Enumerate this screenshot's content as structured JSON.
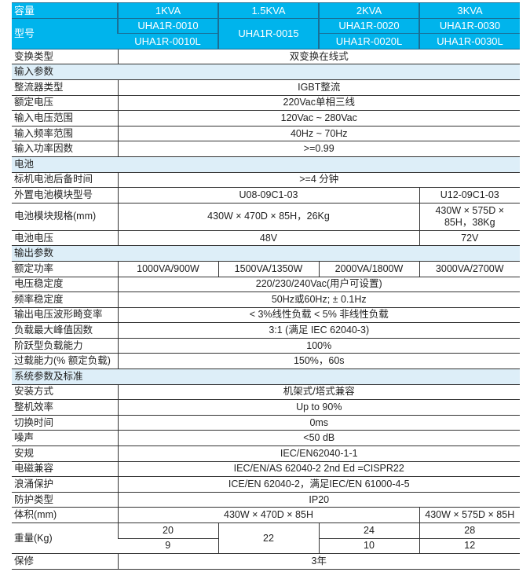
{
  "colors": {
    "header_bg": "#00b4ec",
    "section_bg": "#ddeef8"
  },
  "rows": [
    {
      "type": "head",
      "label": "容量",
      "cells": [
        {
          "text": "1KVA"
        },
        {
          "text": "1.5KVA"
        },
        {
          "text": "2KVA"
        },
        {
          "text": "3KVA"
        }
      ]
    },
    {
      "type": "head",
      "label": "型号",
      "label_rowspan": 2,
      "cells": [
        {
          "text": "UHA1R-0010"
        },
        {
          "text": "UHA1R-0015",
          "rowspan": 2
        },
        {
          "text": "UHA1R-0020"
        },
        {
          "text": "UHA1R-0030"
        }
      ]
    },
    {
      "type": "head",
      "cells": [
        {
          "text": "UHA1R-0010L"
        },
        {
          "text": "UHA1R-0020L"
        },
        {
          "text": "UHA1R-0030L"
        }
      ]
    },
    {
      "label": "变换类型",
      "cells": [
        {
          "text": "双变换在线式",
          "span": 4
        }
      ]
    },
    {
      "type": "section",
      "label": "输入参数"
    },
    {
      "label": "整流器类型",
      "cells": [
        {
          "text": "IGBT整流",
          "span": 4
        }
      ]
    },
    {
      "label": "额定电压",
      "cells": [
        {
          "text": "220Vac单相三线",
          "span": 4
        }
      ]
    },
    {
      "label": "输入电压范围",
      "cells": [
        {
          "text": "120Vac ~ 280Vac",
          "span": 4
        }
      ]
    },
    {
      "label": "输入频率范围",
      "cells": [
        {
          "text": "40Hz ~ 70Hz",
          "span": 4
        }
      ]
    },
    {
      "label": "输入功率因数",
      "cells": [
        {
          "text": ">=0.99",
          "span": 4
        }
      ]
    },
    {
      "type": "section",
      "label": "电池"
    },
    {
      "label": "标机电池后备时间",
      "cells": [
        {
          "text": ">=4 分钟",
          "span": 4
        }
      ]
    },
    {
      "label": "外置电池模块型号",
      "cells": [
        {
          "text": "U08-09C1-03",
          "span": 3
        },
        {
          "text": "U12-09C1-03"
        }
      ]
    },
    {
      "type": "tall",
      "label": "电池模块规格(mm)",
      "cells": [
        {
          "text": "430W × 470D × 85H，26Kg",
          "span": 3
        },
        {
          "text": "430W × 575D × 85H，38Kg",
          "wrap": true
        }
      ]
    },
    {
      "label": "电池电压",
      "cells": [
        {
          "text": "48V",
          "span": 3
        },
        {
          "text": "72V"
        }
      ]
    },
    {
      "type": "section",
      "label": "输出参数"
    },
    {
      "label": "额定功率",
      "cells": [
        {
          "text": "1000VA/900W"
        },
        {
          "text": "1500VA/1350W"
        },
        {
          "text": "2000VA/1800W"
        },
        {
          "text": "3000VA/2700W"
        }
      ]
    },
    {
      "label": "电压稳定度",
      "cells": [
        {
          "text": "220/230/240Vac(用户可设置)",
          "span": 4
        }
      ]
    },
    {
      "label": "频率稳定度",
      "cells": [
        {
          "text": "50Hz或60Hz; ± 0.1Hz",
          "span": 4
        }
      ]
    },
    {
      "label": "输出电压波形畸变率",
      "cells": [
        {
          "text": "< 3%线性负载   < 5% 非线性负载",
          "span": 4
        }
      ]
    },
    {
      "label": "负载最大峰值因数",
      "cells": [
        {
          "text": "3:1 (满足 IEC 62040-3)",
          "span": 4
        }
      ]
    },
    {
      "label": "阶跃型负载能力",
      "cells": [
        {
          "text": "100%",
          "span": 4
        }
      ]
    },
    {
      "label": "过载能力(% 额定负载)",
      "cells": [
        {
          "text": "150%，60s",
          "span": 4
        }
      ]
    },
    {
      "type": "section",
      "label": "系统参数及标准"
    },
    {
      "label": "安装方式",
      "cells": [
        {
          "text": "机架式/塔式兼容",
          "span": 4
        }
      ]
    },
    {
      "label": "整机效率",
      "cells": [
        {
          "text": "Up to 90%",
          "span": 4
        }
      ]
    },
    {
      "label": "切换时间",
      "cells": [
        {
          "text": "0ms",
          "span": 4
        }
      ]
    },
    {
      "label": "噪声",
      "cells": [
        {
          "text": "<50 dB",
          "span": 4
        }
      ]
    },
    {
      "label": "安规",
      "cells": [
        {
          "text": "IEC/EN62040-1-1",
          "span": 4
        }
      ]
    },
    {
      "label": "电磁兼容",
      "cells": [
        {
          "text": "IEC/EN/AS 62040-2  2nd Ed  =CISPR22",
          "span": 4
        }
      ]
    },
    {
      "label": "浪涌保护",
      "cells": [
        {
          "text": "ICE/EN 62040-2，满足IEC/EN 61000-4-5",
          "span": 4
        }
      ]
    },
    {
      "label": "防护类型",
      "cells": [
        {
          "text": "IP20",
          "span": 4
        }
      ]
    },
    {
      "label": "体积(mm)",
      "cells": [
        {
          "text": "430W × 470D × 85H",
          "span": 3
        },
        {
          "text": "430W × 575D × 85H"
        }
      ]
    },
    {
      "label": "重量(Kg)",
      "label_rowspan": 2,
      "cells": [
        {
          "text": "20"
        },
        {
          "text": "22",
          "rowspan": 2
        },
        {
          "text": "24"
        },
        {
          "text": "28"
        }
      ]
    },
    {
      "cells": [
        {
          "text": "9"
        },
        {
          "text": "10"
        },
        {
          "text": "12"
        }
      ]
    },
    {
      "label": "保修",
      "cells": [
        {
          "text": "3年",
          "span": 4
        }
      ]
    }
  ]
}
